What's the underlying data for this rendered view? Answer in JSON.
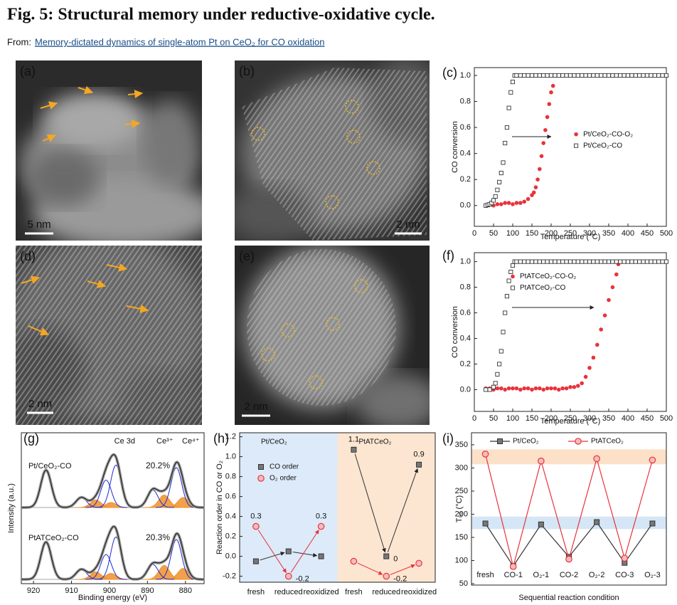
{
  "header": {
    "title": "Fig. 5: Structural memory under reductive-oxidative cycle.",
    "from_label": "From:",
    "link": "Memory-dictated dynamics of single-atom Pt on CeO₂ for CO oxidation"
  },
  "images": [
    {
      "label": "(a)",
      "scale_bar": "5 nm"
    },
    {
      "label": "(b)",
      "scale_bar": "2 nm"
    },
    {
      "label": "(d)",
      "scale_bar": "2 nm"
    },
    {
      "label": "(e)",
      "scale_bar": "2 nm"
    }
  ],
  "chart_data": [
    {
      "type": "scatter",
      "panel_label": "(c)",
      "xlabel": "Temperature (°C)",
      "ylabel": "CO conversion",
      "xlim": [
        0,
        500
      ],
      "xticks": [
        0,
        50,
        100,
        150,
        200,
        250,
        300,
        350,
        400,
        450,
        500
      ],
      "ylim": [
        -0.16,
        1.06
      ],
      "yticks": [
        {
          "value": 0,
          "label": "0.0"
        },
        0.2,
        0.4,
        0.6,
        0.8,
        {
          "value": 1,
          "label": "1.0"
        }
      ],
      "legend": "center right",
      "series": [
        {
          "name": "Pt/CeO₂-CO-O₂",
          "color": "#e8333a",
          "marker": "filled-circle",
          "x": [
            30,
            40,
            50,
            60,
            70,
            80,
            90,
            100,
            110,
            120,
            130,
            140,
            150,
            155,
            160,
            165,
            170,
            175,
            180,
            185,
            190,
            195,
            200,
            205
          ],
          "values": [
            0,
            0.01,
            0,
            0.01,
            0.01,
            0.02,
            0.02,
            0.01,
            0.02,
            0.02,
            0.03,
            0.05,
            0.08,
            0.1,
            0.14,
            0.2,
            0.28,
            0.38,
            0.48,
            0.58,
            0.68,
            0.78,
            0.87,
            0.92
          ]
        },
        {
          "name": "Pt/CeO₂-CO",
          "color": "#333333",
          "marker": "open-square",
          "x": [
            30,
            35,
            40,
            45,
            50,
            55,
            60,
            65,
            70,
            75,
            80,
            85,
            90,
            95,
            100,
            105,
            110,
            120,
            130,
            140,
            150,
            160,
            170,
            180,
            190,
            200,
            210,
            220,
            230,
            240,
            250,
            260,
            270,
            280,
            290,
            300,
            310,
            320,
            330,
            340,
            350,
            360,
            370,
            380,
            390,
            400,
            410,
            420,
            430,
            440,
            450,
            460,
            470,
            480,
            490,
            500
          ],
          "values": [
            0,
            0.005,
            0.01,
            0.02,
            0.04,
            0.07,
            0.12,
            0.18,
            0.25,
            0.33,
            0.48,
            0.6,
            0.75,
            0.87,
            0.95,
            1,
            1,
            1,
            1,
            1,
            1,
            1,
            1,
            1,
            1,
            1,
            1,
            1,
            1,
            1,
            1,
            1,
            1,
            1,
            1,
            1,
            1,
            1,
            1,
            1,
            1,
            1,
            1,
            1,
            1,
            1,
            1,
            1,
            1,
            1,
            1,
            1,
            1,
            1,
            1,
            1
          ]
        }
      ]
    },
    {
      "type": "scatter",
      "panel_label": "(f)",
      "xlabel": "Temperature (°C)",
      "ylabel": "CO conversion",
      "xlim": [
        0,
        500
      ],
      "xticks": [
        0,
        50,
        100,
        150,
        200,
        250,
        300,
        350,
        400,
        450,
        500
      ],
      "ylim": [
        -0.17,
        1.07
      ],
      "yticks": [
        {
          "value": 0,
          "label": "0.0"
        },
        0.2,
        0.4,
        0.6,
        0.8,
        {
          "value": 1,
          "label": "1.0"
        }
      ],
      "legend": "upper left",
      "series": [
        {
          "name": "PtATCeO₂-CO-O₂",
          "color": "#e8333a",
          "marker": "filled-circle",
          "x": [
            30,
            40,
            50,
            60,
            70,
            80,
            90,
            100,
            110,
            120,
            130,
            140,
            150,
            160,
            170,
            180,
            190,
            200,
            210,
            220,
            230,
            240,
            250,
            260,
            270,
            280,
            290,
            300,
            310,
            320,
            330,
            340,
            350,
            360,
            370,
            375
          ],
          "values": [
            0.01,
            0.01,
            0,
            0.01,
            0.01,
            0,
            0.01,
            0.01,
            0.01,
            0,
            0.01,
            0.01,
            0,
            0.01,
            0.01,
            0,
            0.01,
            0.01,
            0.01,
            0,
            0.01,
            0.01,
            0.02,
            0.02,
            0.03,
            0.05,
            0.1,
            0.17,
            0.25,
            0.35,
            0.47,
            0.58,
            0.7,
            0.8,
            0.9,
            0.98
          ]
        },
        {
          "name": "PtATCeO₂-CO",
          "color": "#333333",
          "marker": "open-square",
          "x": [
            30,
            40,
            50,
            55,
            60,
            65,
            70,
            75,
            80,
            85,
            90,
            95,
            100,
            105,
            110,
            120,
            130,
            140,
            150,
            160,
            170,
            180,
            190,
            200,
            210,
            220,
            230,
            240,
            250,
            260,
            270,
            280,
            290,
            300,
            310,
            320,
            330,
            340,
            350,
            360,
            370,
            380,
            390,
            400,
            410,
            420,
            430,
            440,
            450,
            460,
            470,
            480,
            490,
            500
          ],
          "values": [
            0,
            0,
            0.02,
            0.05,
            0.12,
            0.2,
            0.3,
            0.45,
            0.6,
            0.73,
            0.85,
            0.92,
            0.97,
            1,
            1,
            1,
            1,
            1,
            1,
            1,
            1,
            1,
            1,
            1,
            1,
            1,
            1,
            1,
            1,
            1,
            1,
            1,
            1,
            1,
            1,
            1,
            1,
            1,
            1,
            1,
            1,
            1,
            1,
            1,
            1,
            1,
            1,
            1,
            1,
            1,
            1,
            1,
            1,
            1
          ]
        }
      ]
    },
    {
      "type": "dot",
      "panel_label": "(h)",
      "ylabel": "Reaction order in CO or O₂",
      "categories": [
        "fresh",
        "reduced",
        "reoxidized",
        "fresh",
        "reduced",
        "reoxidized"
      ],
      "regions": [
        {
          "label": "Pt/CeO₂",
          "color": "#dceaf9"
        },
        {
          "label": "PtATCeO₂",
          "color": "#fce6d1"
        }
      ],
      "ylim": [
        -0.26,
        1.24
      ],
      "yticks": [
        -0.2,
        {
          "value": 0,
          "label": "0.0"
        },
        0.2,
        0.4,
        0.6,
        0.8,
        {
          "value": 1,
          "label": "1.0"
        },
        1.2
      ],
      "series": [
        {
          "name": "CO order",
          "color": "#333333",
          "marker": "square",
          "values": [
            -0.05,
            0.05,
            0,
            1.07,
            0,
            0.92
          ],
          "value_labels": [
            null,
            null,
            null,
            "1.1",
            "0",
            "0.9"
          ]
        },
        {
          "name": "O₂ order",
          "color": "#e8333a",
          "marker": "circle",
          "values": [
            0.3,
            -0.2,
            0.3,
            -0.05,
            -0.2,
            -0.07
          ],
          "value_labels": [
            "0.3",
            "-0.2",
            "0.3",
            null,
            "-0.2",
            null
          ]
        }
      ]
    },
    {
      "type": "line",
      "panel_label": "(i)",
      "ylabel": "T₅₀ (°C)",
      "xlabel": "Sequential reaction condition",
      "categories": [
        "fresh",
        "CO-1",
        "O₂-1",
        "CO-2",
        "O₂-2",
        "CO-3",
        "O₂-3"
      ],
      "ylim": [
        47,
        376
      ],
      "yticks": [
        50,
        100,
        150,
        200,
        250,
        300,
        350
      ],
      "bands": [
        {
          "from": 308,
          "to": 340,
          "color": "#fce0c8"
        },
        {
          "from": 168,
          "to": 195,
          "color": "#d5e6f6"
        }
      ],
      "series": [
        {
          "name": "Pt/CeO₂",
          "color": "#333333",
          "marker": "square",
          "values": [
            180,
            88,
            178,
            108,
            183,
            95,
            180
          ]
        },
        {
          "name": "PtATCeO₂",
          "color": "#e8333a",
          "marker": "circle",
          "values": [
            330,
            87,
            315,
            103,
            320,
            105,
            317
          ]
        }
      ]
    },
    {
      "type": "spectrum",
      "panel_label": "(g)",
      "title": "Ce 3d",
      "xlabel": "Binding energy (eV)",
      "ylabel": "Intensity (a.u.)",
      "xlim": [
        923.2,
        875.1
      ],
      "xticks": [
        920,
        910,
        900,
        890,
        880
      ],
      "peak_width": 1.4,
      "spectra": [
        {
          "name": "Pt/CeO₂-CO",
          "ratio_label": "20.2%"
        },
        {
          "name": "PtATCeO₂-CO",
          "ratio_label": "20.3%"
        }
      ],
      "components": [
        {
          "name": "Ce³⁺",
          "color": "#f0902a",
          "filled": true,
          "centers": [
            903.6,
            899.6,
            885.6,
            880.6
          ],
          "heights": [
            [
              0.15,
              0.1,
              0.25,
              0.2
            ],
            [
              0.15,
              0.12,
              0.28,
              0.22
            ]
          ]
        },
        {
          "name": "Ce⁴⁺",
          "color": "#1f2bd6",
          "filled": false,
          "centers": [
            916.7,
            907.4,
            900.9,
            898.3,
            888.6,
            882.4
          ],
          "heights": [
            [
              0.75,
              0.2,
              0.55,
              0.85,
              0.35,
              0.8
            ],
            [
              0.75,
              0.2,
              0.5,
              0.85,
              0.3,
              0.8
            ]
          ]
        }
      ]
    }
  ]
}
